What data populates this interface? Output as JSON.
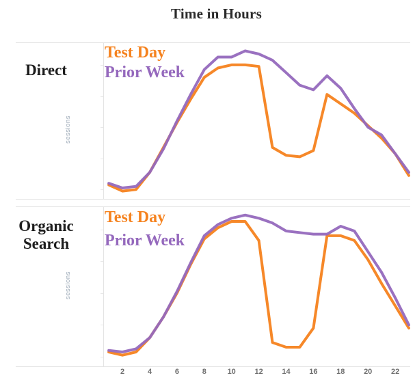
{
  "title": "Time in Hours",
  "ylabel": "sessions",
  "x_ticks": [
    2,
    4,
    6,
    8,
    10,
    12,
    14,
    16,
    18,
    20,
    22
  ],
  "colors": {
    "test_day": "#f5821e",
    "prior_week": "#9569bd",
    "axis_line": "#e4e4e4",
    "tick_label": "#6f6f6f",
    "ylabel_text": "#98a6b4",
    "title_text": "#2b2b2b",
    "row_label_text": "#1c1c1c"
  },
  "chart_data": [
    {
      "type": "line",
      "panel_label": "Direct",
      "title": "Time in Hours",
      "xlabel": "Time in Hours",
      "ylabel": "sessions",
      "x": [
        1,
        2,
        3,
        4,
        5,
        6,
        7,
        8,
        9,
        10,
        11,
        12,
        13,
        14,
        15,
        16,
        17,
        18,
        19,
        20,
        21,
        22,
        23
      ],
      "xlim": [
        0,
        24
      ],
      "ylim": [
        0,
        100
      ],
      "grid": false,
      "legend_position": "top-left",
      "series": [
        {
          "name": "Test Day",
          "color": "#f5821e",
          "values": [
            9,
            5,
            6,
            17,
            33,
            49,
            64,
            78,
            84,
            86,
            86,
            85,
            33,
            28,
            27,
            31,
            67,
            61,
            55,
            47,
            39,
            29,
            15
          ]
        },
        {
          "name": "Prior Week",
          "color": "#9569bd",
          "values": [
            10,
            7,
            8,
            17,
            32,
            50,
            67,
            83,
            91,
            91,
            95,
            93,
            89,
            81,
            73,
            70,
            79,
            71,
            58,
            46,
            41,
            29,
            17
          ]
        }
      ]
    },
    {
      "type": "line",
      "panel_label": "Organic Search",
      "title": "Time in Hours",
      "xlabel": "Time in Hours",
      "ylabel": "sessions",
      "x": [
        1,
        2,
        3,
        4,
        5,
        6,
        7,
        8,
        9,
        10,
        11,
        12,
        13,
        14,
        15,
        16,
        17,
        18,
        19,
        20,
        21,
        22,
        23
      ],
      "xlim": [
        0,
        24
      ],
      "ylim": [
        0,
        100
      ],
      "grid": false,
      "legend_position": "top-left",
      "series": [
        {
          "name": "Test Day",
          "color": "#f5821e",
          "values": [
            9,
            7,
            9,
            18,
            31,
            46,
            64,
            80,
            87,
            91,
            91,
            79,
            15,
            12,
            12,
            24,
            82,
            82,
            79,
            67,
            52,
            38,
            24
          ]
        },
        {
          "name": "Prior Week",
          "color": "#9569bd",
          "values": [
            10,
            9,
            11,
            18,
            31,
            47,
            65,
            82,
            89,
            93,
            95,
            93,
            90,
            85,
            84,
            83,
            83,
            88,
            85,
            72,
            59,
            43,
            26
          ]
        }
      ]
    }
  ]
}
